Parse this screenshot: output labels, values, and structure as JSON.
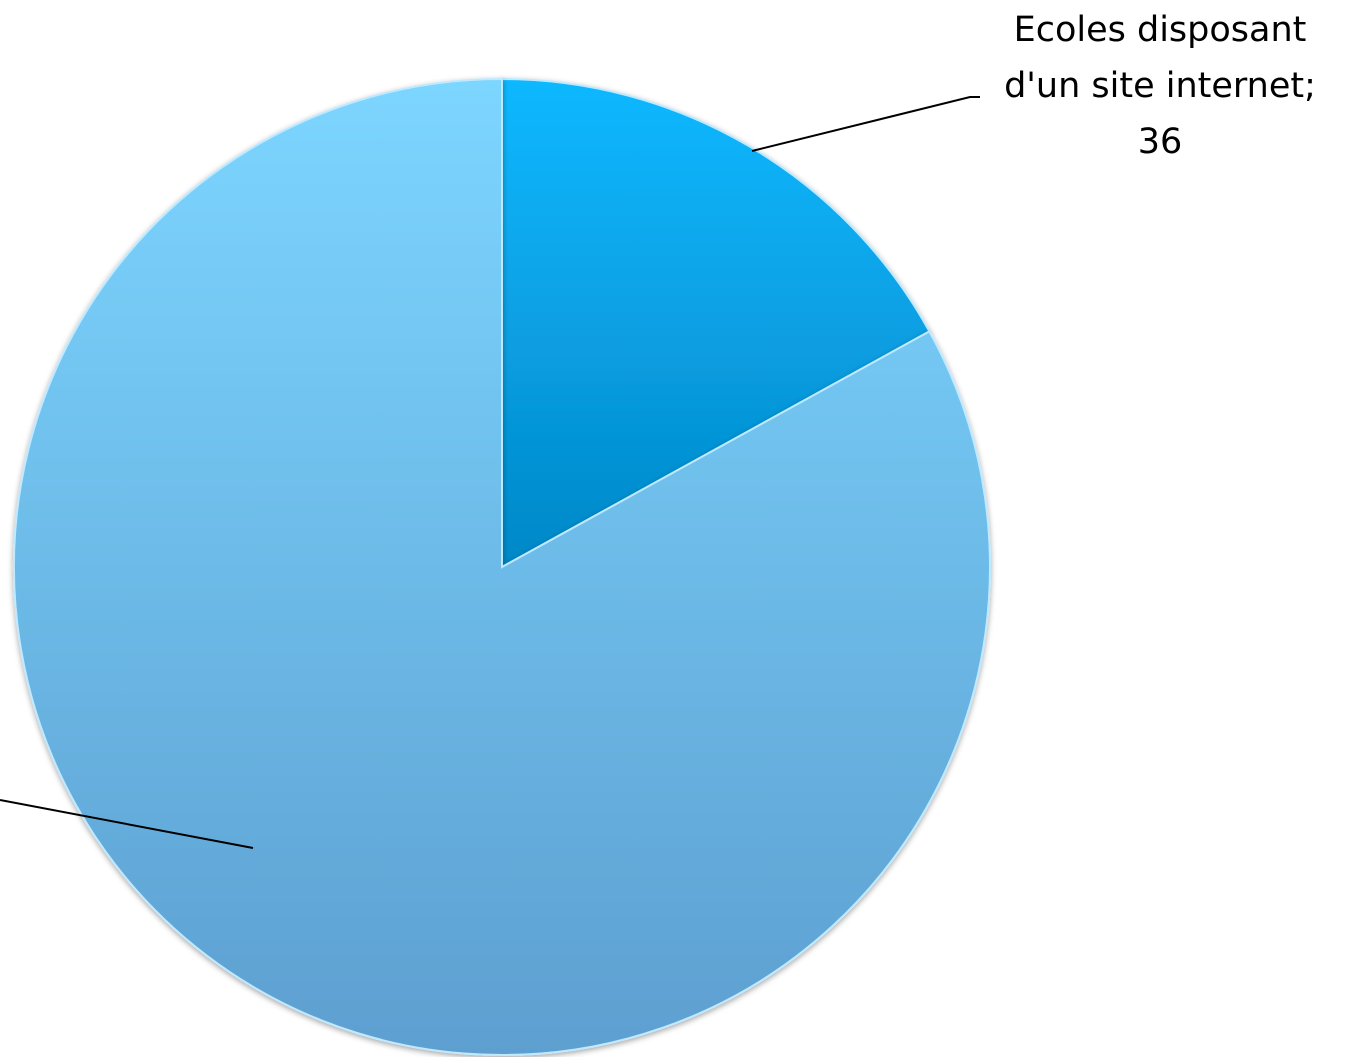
{
  "chart_data": {
    "type": "pie",
    "slices": [
      {
        "value": 36,
        "label_lines": [
          "Ecoles disposant",
          "d'un site internet;",
          "36"
        ],
        "color": "#0aa7e8"
      },
      {
        "value": 176,
        "label_lines": [],
        "color": "#6ebff0"
      }
    ],
    "start_angle_deg": 0,
    "direction": "clockwise",
    "legend": "none",
    "title": ""
  }
}
